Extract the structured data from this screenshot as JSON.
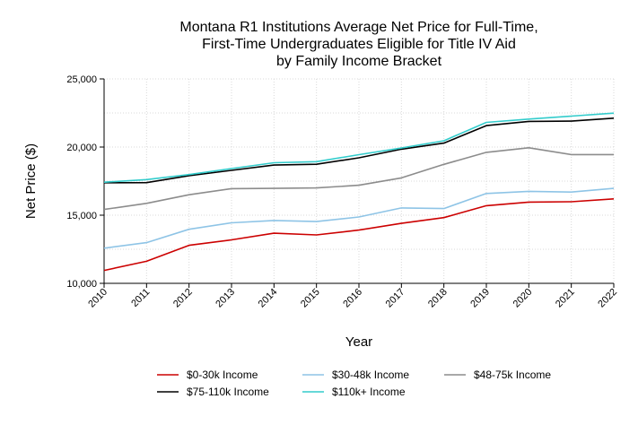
{
  "chart_data": {
    "type": "line",
    "title": [
      "Montana R1 Institutions Average Net Price for Full-Time,",
      "First-Time Undergraduates Eligible for Title IV Aid",
      "by Family Income Bracket"
    ],
    "xlabel": "Year",
    "ylabel": "Net Price ($)",
    "x": [
      "2010",
      "2011",
      "2012",
      "2013",
      "2014",
      "2015",
      "2016",
      "2017",
      "2018",
      "2019",
      "2020",
      "2021",
      "2022"
    ],
    "ylim": [
      10000,
      25000
    ],
    "yticks": [
      10000,
      15000,
      20000,
      25000
    ],
    "ytick_labels": [
      "10,000",
      "15,000",
      "20,000",
      "25,000"
    ],
    "grid": true,
    "legend_position": "bottom",
    "series": [
      {
        "name": "$0-30k Income",
        "color": "#cc0000",
        "values": [
          10950,
          11620,
          12790,
          13190,
          13680,
          13550,
          13910,
          14400,
          14820,
          15700,
          15960,
          15990,
          16200
        ]
      },
      {
        "name": "$30-48k Income",
        "color": "#8ec4e6",
        "values": [
          12580,
          12990,
          13970,
          14440,
          14610,
          14530,
          14870,
          15530,
          15490,
          16590,
          16750,
          16700,
          16970
        ]
      },
      {
        "name": "$48-75k Income",
        "color": "#8c8c8c",
        "values": [
          15420,
          15870,
          16500,
          16950,
          16970,
          17000,
          17200,
          17740,
          18730,
          19610,
          19950,
          19450,
          19450
        ]
      },
      {
        "name": "$75-110k Income",
        "color": "#000000",
        "values": [
          17380,
          17390,
          17900,
          18290,
          18680,
          18740,
          19210,
          19840,
          20290,
          21570,
          21880,
          21900,
          22120
        ]
      },
      {
        "name": "$110k+ Income",
        "color": "#33cccc",
        "values": [
          17420,
          17610,
          17980,
          18420,
          18850,
          18930,
          19440,
          19930,
          20460,
          21810,
          22050,
          22270,
          22490
        ]
      }
    ]
  }
}
